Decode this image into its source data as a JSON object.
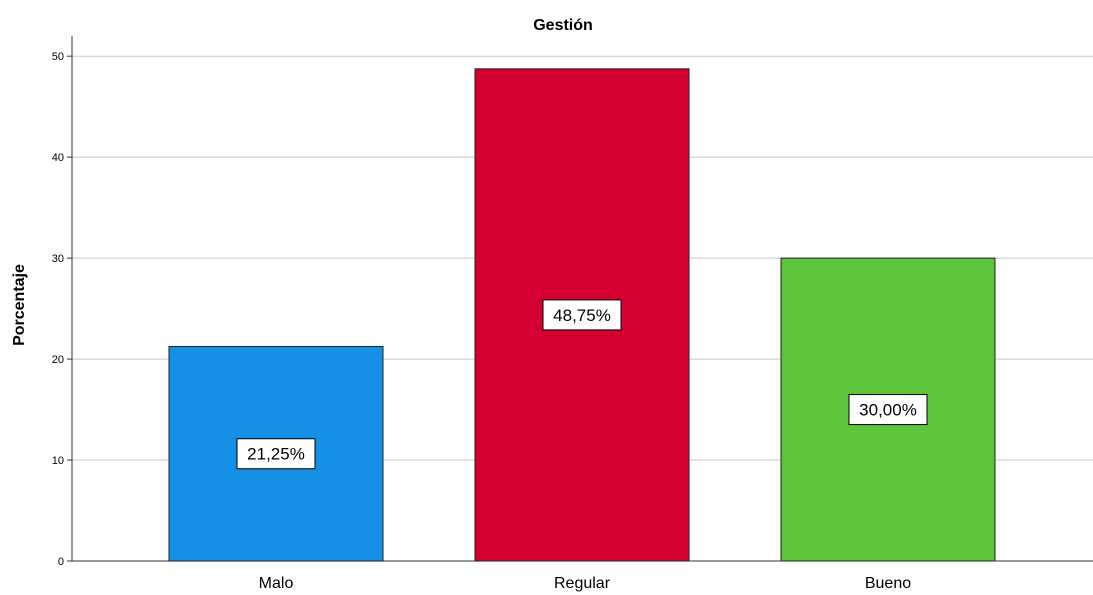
{
  "chart_data": {
    "type": "bar",
    "title": "Gestión",
    "xlabel": "",
    "ylabel": "Porcentaje",
    "ylim": [
      0,
      52
    ],
    "yticks": [
      0,
      10,
      20,
      30,
      40,
      50
    ],
    "grid": true,
    "categories": [
      "Malo",
      "Regular",
      "Bueno"
    ],
    "values": [
      21.25,
      48.75,
      30.0
    ],
    "data_labels": [
      "21,25%",
      "48,75%",
      "30,00%"
    ],
    "colors": [
      "#1690E5",
      "#D50032",
      "#5EC43B"
    ]
  }
}
